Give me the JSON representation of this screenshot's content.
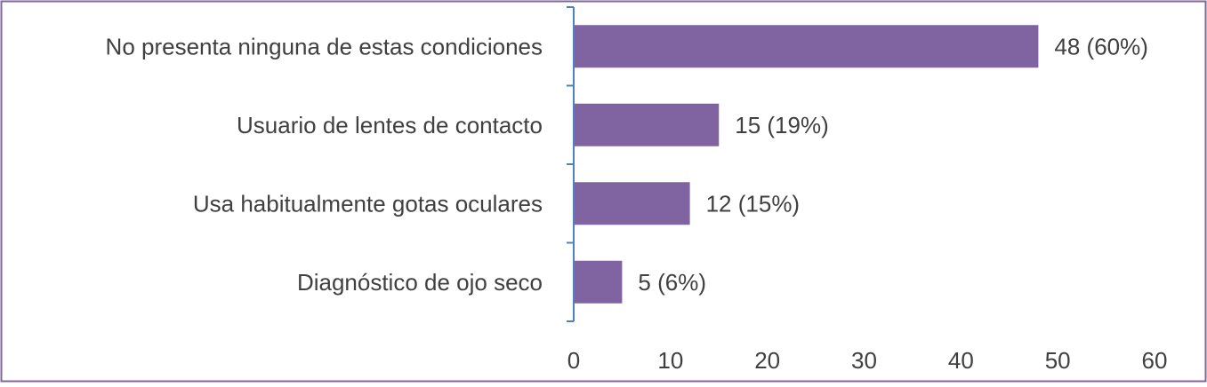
{
  "chart_data": {
    "type": "bar",
    "orientation": "horizontal",
    "categories": [
      "No presenta ninguna de estas condiciones",
      "Usuario de lentes de contacto",
      "Usa habitualmente gotas oculares",
      "Diagnóstico de ojo seco"
    ],
    "values": [
      48,
      15,
      12,
      5
    ],
    "data_labels": [
      "48 (60%)",
      "15 (19%)",
      "12 (15%)",
      "5 (6%)"
    ],
    "xlim": [
      0,
      60
    ],
    "x_ticks": [
      "0",
      "10",
      "20",
      "30",
      "40",
      "50",
      "60"
    ],
    "grid": false,
    "legend": "none",
    "colors": {
      "bar": "#8064A2",
      "frame": "#8064A2",
      "axis": "#4F81BD",
      "text": "#404040"
    }
  }
}
